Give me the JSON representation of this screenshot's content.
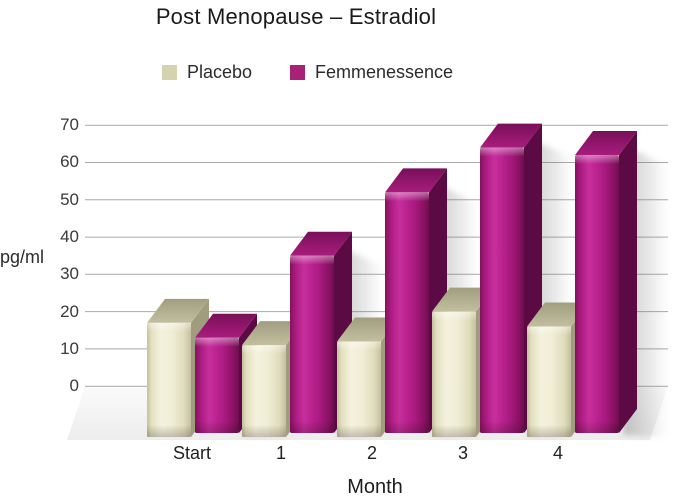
{
  "title": "Post Menopause – Estradiol",
  "legend": {
    "items": [
      {
        "label": "Placebo",
        "color": "#d5d2ae"
      },
      {
        "label": "Femmenessence",
        "color": "#a62177"
      }
    ]
  },
  "axes": {
    "y_unit_label": "pg/ml",
    "x_axis_title": "Month",
    "y_ticks": [
      70,
      60,
      50,
      40,
      30,
      20,
      10,
      0
    ]
  },
  "chart_data": {
    "type": "bar",
    "style": "3d-column",
    "title": "Post Menopause – Estradiol",
    "categories": [
      "Start",
      "1",
      "2",
      "3",
      "4"
    ],
    "series": [
      {
        "name": "Placebo",
        "color": "#e9e6c9",
        "values": [
          17,
          11,
          12,
          20,
          16
        ]
      },
      {
        "name": "Femmenessence",
        "color": "#b01e85",
        "values": [
          13,
          35,
          52,
          64,
          62
        ]
      }
    ],
    "xlabel": "Month",
    "ylabel": "pg/ml",
    "ylim": [
      0,
      70
    ],
    "ytick_step": 10,
    "grid": true,
    "legend_position": "top"
  },
  "colors": {
    "background": "#ffffff",
    "gridline": "#a9a9a9",
    "placebo_front": "#f0eed6",
    "placebo_top": "#b3b092",
    "femme_front": "#b81f8c",
    "femme_top": "#8c1468"
  }
}
